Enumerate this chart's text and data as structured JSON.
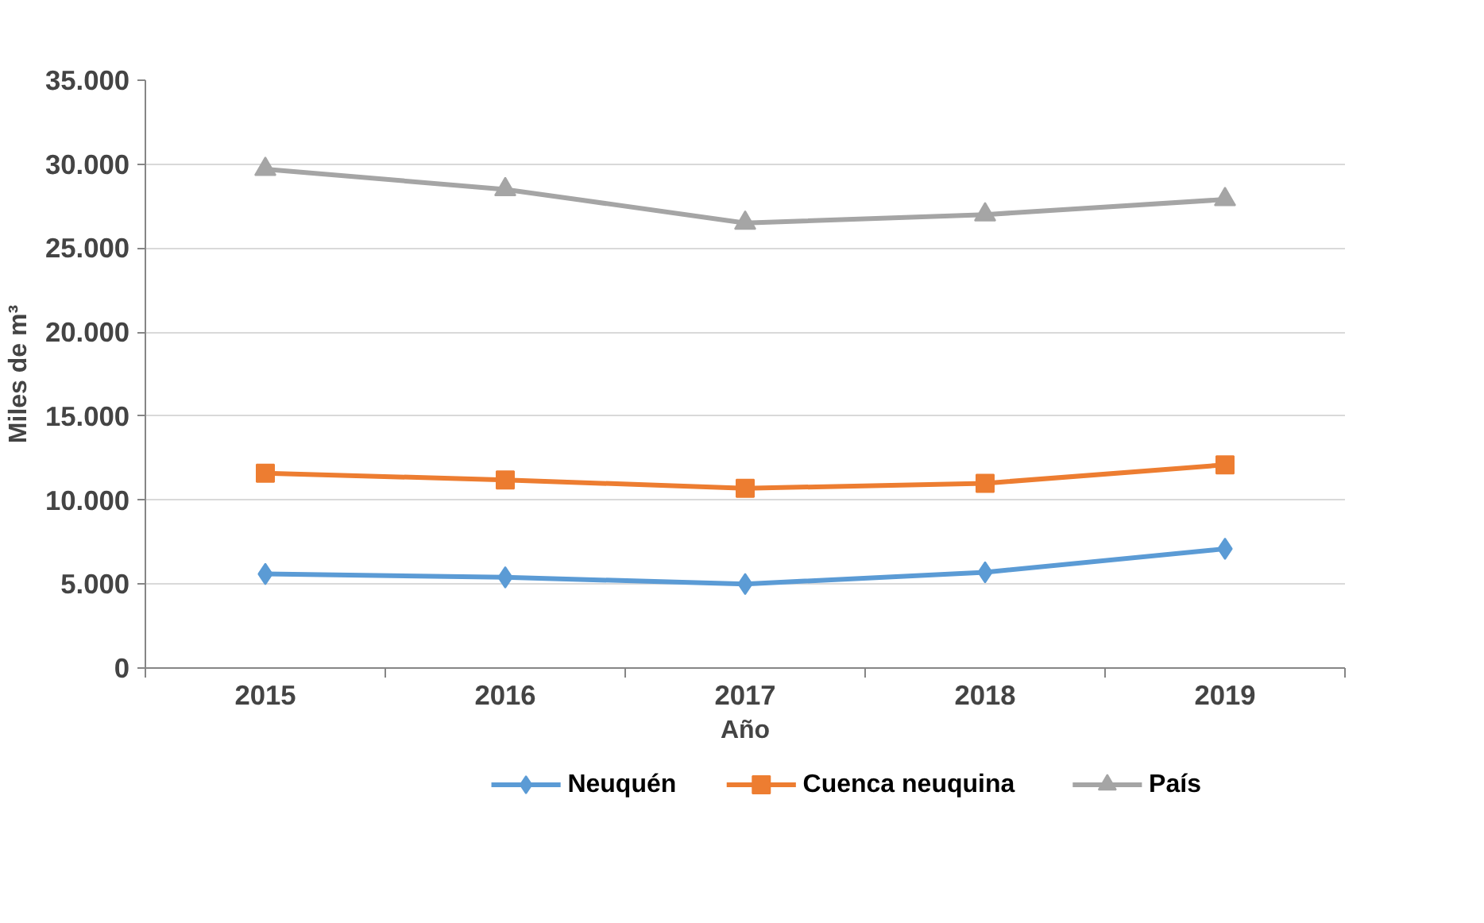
{
  "chart_data": {
    "type": "line",
    "xlabel": "Año",
    "ylabel": "Miles de m³",
    "categories": [
      "2015",
      "2016",
      "2017",
      "2018",
      "2019"
    ],
    "series": [
      {
        "name": "Neuquén",
        "color": "#5b9bd5",
        "marker": "diamond",
        "values": [
          5600,
          5400,
          5000,
          5700,
          7100
        ]
      },
      {
        "name": "Cuenca neuquina",
        "color": "#ed7d31",
        "marker": "square",
        "values": [
          11600,
          11200,
          10700,
          11000,
          12100
        ]
      },
      {
        "name": "País",
        "color": "#a5a5a5",
        "marker": "triangle",
        "values": [
          29700,
          28500,
          26500,
          27000,
          27900
        ]
      }
    ],
    "ylim": [
      0,
      35000
    ],
    "yticks": [
      {
        "value": 0,
        "label": "0"
      },
      {
        "value": 5000,
        "label": "5.000"
      },
      {
        "value": 10000,
        "label": "10.000"
      },
      {
        "value": 15000,
        "label": "15.000"
      },
      {
        "value": 20000,
        "label": "20.000"
      },
      {
        "value": 25000,
        "label": "25.000"
      },
      {
        "value": 30000,
        "label": "30.000"
      },
      {
        "value": 35000,
        "label": "35.000"
      }
    ],
    "grid": "y",
    "legend": "bottom",
    "line_style": "solid"
  }
}
